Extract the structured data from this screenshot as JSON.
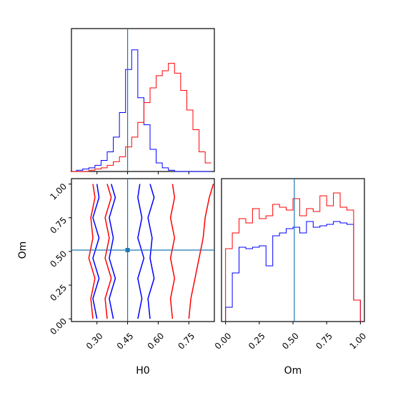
{
  "chart_data": [
    {
      "type": "histogram",
      "panel": "H0 marginal",
      "xlim": [
        0.175,
        0.875
      ],
      "bins_x": [
        0.17,
        0.2,
        0.23,
        0.26,
        0.29,
        0.32,
        0.35,
        0.38,
        0.41,
        0.44,
        0.47,
        0.5,
        0.53,
        0.56,
        0.59,
        0.62,
        0.65,
        0.68,
        0.71,
        0.74,
        0.77,
        0.8,
        0.83,
        0.86
      ],
      "series": [
        {
          "color": "#0000ff",
          "values": [
            0.0,
            0.01,
            0.02,
            0.03,
            0.05,
            0.09,
            0.16,
            0.28,
            0.48,
            0.83,
            0.99,
            0.6,
            0.38,
            0.18,
            0.07,
            0.03,
            0.01,
            0.0,
            0.0,
            0.0,
            0.0,
            0.0,
            0.0
          ]
        },
        {
          "color": "#ff0000",
          "values": [
            0.0,
            0.0,
            0.0,
            0.01,
            0.02,
            0.03,
            0.05,
            0.08,
            0.12,
            0.2,
            0.28,
            0.4,
            0.56,
            0.68,
            0.78,
            0.82,
            0.88,
            0.8,
            0.66,
            0.5,
            0.34,
            0.16,
            0.07
          ]
        }
      ],
      "vline": 0.45
    },
    {
      "type": "contour",
      "panel": "H0 vs Om",
      "xlabel": "H0",
      "ylabel": "Om",
      "xlim": [
        0.175,
        0.875
      ],
      "ylim": [
        -0.02,
        1.04
      ],
      "xticks": [
        "0.30",
        "0.45",
        "0.60",
        "0.75"
      ],
      "yticks": [
        "0.00",
        "0.25",
        "0.50",
        "0.75",
        "1.00"
      ],
      "series": [
        {
          "color": "#0000ff",
          "levels": [
            [
              [
                0.3,
                0.0
              ],
              [
                0.28,
                0.15
              ],
              [
                0.31,
                0.3
              ],
              [
                0.28,
                0.45
              ],
              [
                0.31,
                0.6
              ],
              [
                0.28,
                0.75
              ],
              [
                0.31,
                0.9
              ],
              [
                0.3,
                1.0
              ]
            ],
            [
              [
                0.38,
                0.0
              ],
              [
                0.36,
                0.15
              ],
              [
                0.39,
                0.3
              ],
              [
                0.36,
                0.45
              ],
              [
                0.38,
                0.6
              ],
              [
                0.36,
                0.75
              ],
              [
                0.39,
                0.9
              ],
              [
                0.37,
                1.0
              ]
            ],
            [
              [
                0.5,
                0.0
              ],
              [
                0.52,
                0.15
              ],
              [
                0.5,
                0.3
              ],
              [
                0.53,
                0.45
              ],
              [
                0.5,
                0.6
              ],
              [
                0.52,
                0.75
              ],
              [
                0.5,
                0.9
              ],
              [
                0.51,
                1.0
              ]
            ],
            [
              [
                0.56,
                0.0
              ],
              [
                0.55,
                0.15
              ],
              [
                0.58,
                0.3
              ],
              [
                0.56,
                0.45
              ],
              [
                0.57,
                0.6
              ],
              [
                0.55,
                0.75
              ],
              [
                0.58,
                0.9
              ],
              [
                0.56,
                1.0
              ]
            ]
          ]
        },
        {
          "color": "#ff0000",
          "levels": [
            [
              [
                0.28,
                0.0
              ],
              [
                0.27,
                0.15
              ],
              [
                0.29,
                0.3
              ],
              [
                0.26,
                0.45
              ],
              [
                0.28,
                0.6
              ],
              [
                0.27,
                0.75
              ],
              [
                0.29,
                0.9
              ],
              [
                0.28,
                1.0
              ]
            ],
            [
              [
                0.35,
                0.0
              ],
              [
                0.34,
                0.15
              ],
              [
                0.37,
                0.3
              ],
              [
                0.34,
                0.45
              ],
              [
                0.36,
                0.6
              ],
              [
                0.34,
                0.75
              ],
              [
                0.37,
                0.9
              ],
              [
                0.35,
                1.0
              ]
            ],
            [
              [
                0.67,
                0.0
              ],
              [
                0.66,
                0.15
              ],
              [
                0.68,
                0.3
              ],
              [
                0.66,
                0.45
              ],
              [
                0.68,
                0.6
              ],
              [
                0.66,
                0.75
              ],
              [
                0.68,
                0.9
              ],
              [
                0.67,
                1.0
              ]
            ],
            [
              [
                0.75,
                0.0
              ],
              [
                0.76,
                0.15
              ],
              [
                0.78,
                0.3
              ],
              [
                0.8,
                0.45
              ],
              [
                0.82,
                0.6
              ],
              [
                0.83,
                0.75
              ],
              [
                0.85,
                0.9
              ],
              [
                0.87,
                1.0
              ]
            ]
          ]
        }
      ],
      "vline": 0.45,
      "hline": 0.51,
      "marker": [
        0.45,
        0.51
      ]
    },
    {
      "type": "histogram",
      "panel": "Om marginal",
      "xlabel": "Om",
      "xlim": [
        -0.03,
        1.03
      ],
      "xticks": [
        "0.00",
        "0.25",
        "0.50",
        "0.75",
        "1.00"
      ],
      "bins_x": [
        0.0,
        0.05,
        0.1,
        0.15,
        0.2,
        0.25,
        0.3,
        0.35,
        0.4,
        0.45,
        0.5,
        0.55,
        0.6,
        0.65,
        0.7,
        0.75,
        0.8,
        0.85,
        0.9,
        0.95,
        1.0
      ],
      "series": [
        {
          "color": "#0000ff",
          "values": [
            0.1,
            0.34,
            0.52,
            0.51,
            0.52,
            0.53,
            0.39,
            0.6,
            0.62,
            0.65,
            0.66,
            0.62,
            0.7,
            0.66,
            0.67,
            0.68,
            0.7,
            0.69,
            0.68,
            0.15
          ]
        },
        {
          "color": "#ff0000",
          "values": [
            0.51,
            0.62,
            0.72,
            0.69,
            0.79,
            0.72,
            0.74,
            0.82,
            0.8,
            0.78,
            0.86,
            0.74,
            0.79,
            0.77,
            0.88,
            0.81,
            0.9,
            0.8,
            0.78,
            0.15
          ]
        }
      ],
      "vline": 0.51
    }
  ]
}
